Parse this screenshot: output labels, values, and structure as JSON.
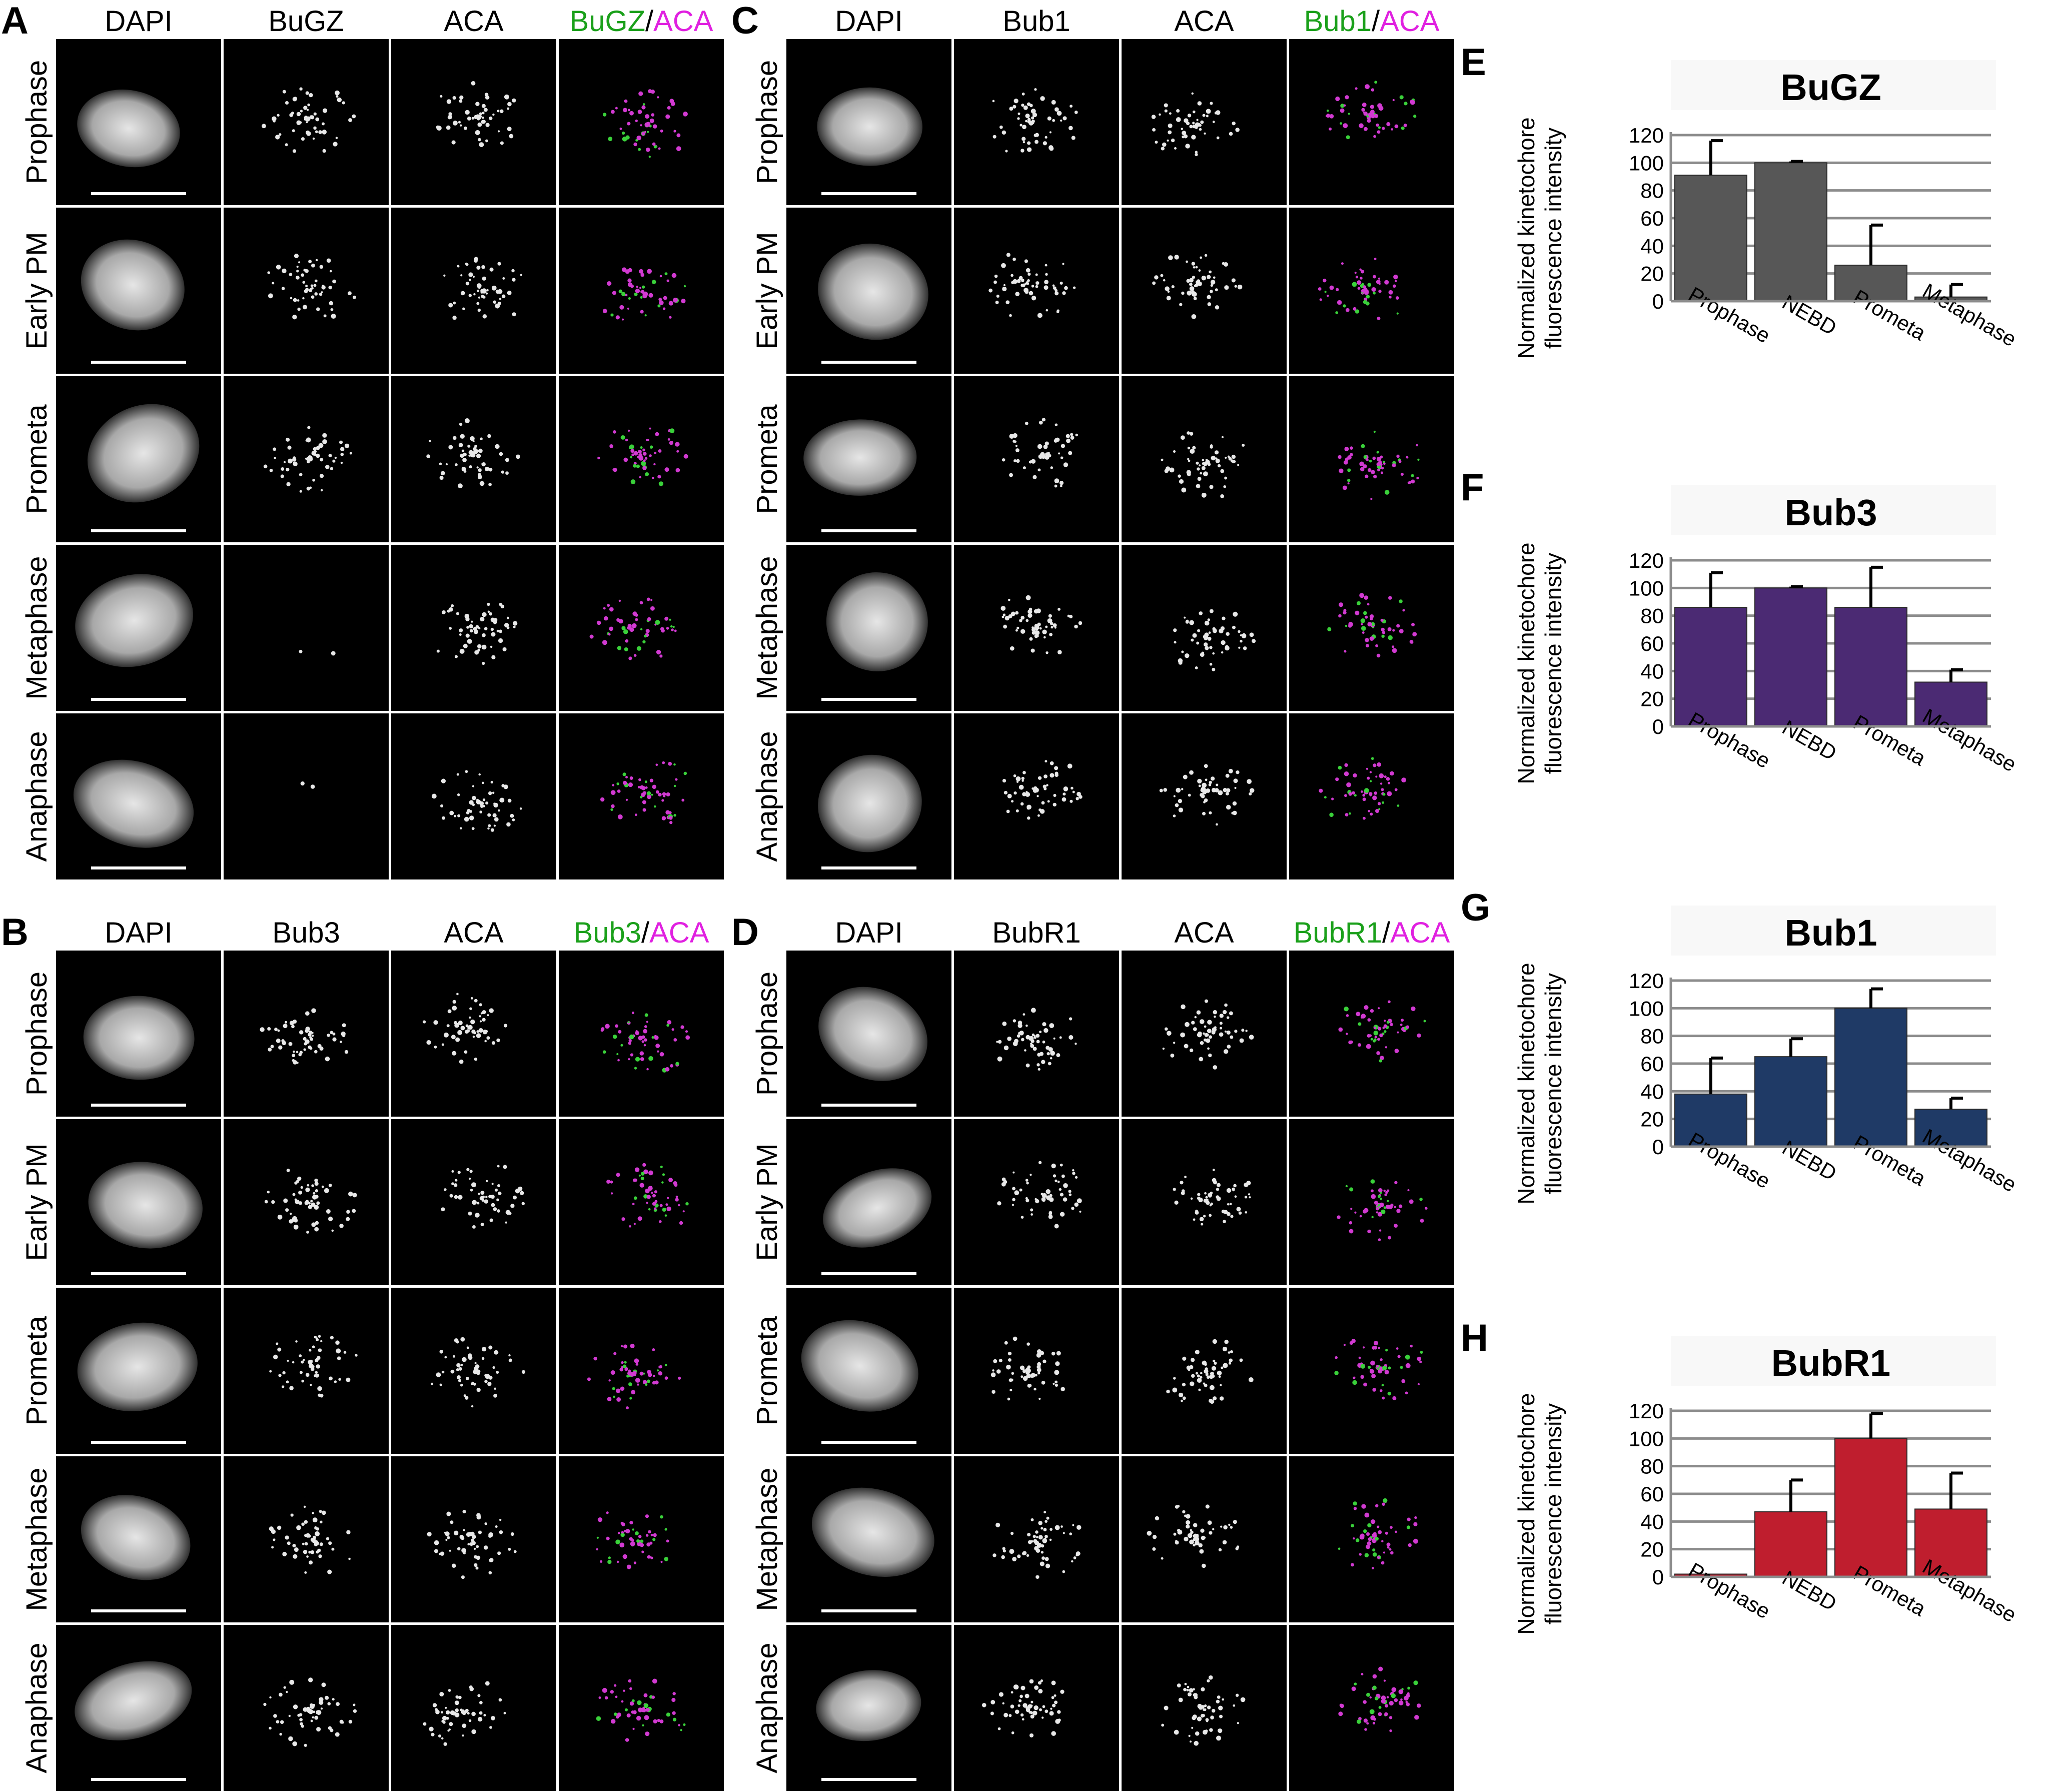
{
  "micrograph_panels": [
    {
      "letter": "A",
      "columns": {
        "c1": "DAPI",
        "c2": "BuGZ",
        "c3": "ACA",
        "merge_green": "BuGZ",
        "merge_sep": "/",
        "merge_magenta": "ACA"
      },
      "rows": [
        "Prophase",
        "Early PM",
        "Prometa",
        "Metaphase",
        "Anaphase"
      ]
    },
    {
      "letter": "B",
      "columns": {
        "c1": "DAPI",
        "c2": "Bub3",
        "c3": "ACA",
        "merge_green": "Bub3",
        "merge_sep": "/",
        "merge_magenta": "ACA"
      },
      "rows": [
        "Prophase",
        "Early PM",
        "Prometa",
        "Metaphase",
        "Anaphase"
      ]
    },
    {
      "letter": "C",
      "columns": {
        "c1": "DAPI",
        "c2": "Bub1",
        "c3": "ACA",
        "merge_green": "Bub1",
        "merge_sep": "/",
        "merge_magenta": "ACA"
      },
      "rows": [
        "Prophase",
        "Early PM",
        "Prometa",
        "Metaphase",
        "Anaphase"
      ]
    },
    {
      "letter": "D",
      "columns": {
        "c1": "DAPI",
        "c2": "BubR1",
        "c3": "ACA",
        "merge_green": "BubR1",
        "merge_sep": "/",
        "merge_magenta": "ACA"
      },
      "rows": [
        "Prophase",
        "Early PM",
        "Prometa",
        "Metaphase",
        "Anaphase"
      ]
    }
  ],
  "colors": {
    "merge_green": "#1aa01a",
    "merge_magenta": "#e020e0",
    "image_background": "#000000"
  },
  "chart_data": [
    {
      "letter": "E",
      "type": "bar",
      "title": "BuGZ",
      "ylabel_line1": "Normalized kinetochore",
      "ylabel_line2": "fluorescence intensity",
      "categories": [
        "Prophase",
        "NEBD",
        "Prometa",
        "Metaphase"
      ],
      "values": [
        91,
        100,
        26,
        3
      ],
      "errors": [
        25,
        1,
        29,
        9
      ],
      "ylim": [
        0,
        120
      ],
      "yticks": [
        0,
        20,
        40,
        60,
        80,
        100,
        120
      ],
      "bar_color": "#575757",
      "grid": true
    },
    {
      "letter": "F",
      "type": "bar",
      "title": "Bub3",
      "ylabel_line1": "Normalized kinetochore",
      "ylabel_line2": "fluorescence intensity",
      "categories": [
        "Prophase",
        "NEBD",
        "Prometa",
        "Metaphase"
      ],
      "values": [
        86,
        100,
        86,
        32
      ],
      "errors": [
        25,
        1,
        29,
        9
      ],
      "ylim": [
        0,
        120
      ],
      "yticks": [
        0,
        20,
        40,
        60,
        80,
        100,
        120
      ],
      "bar_color": "#4b2a73",
      "grid": true
    },
    {
      "letter": "G",
      "type": "bar",
      "title": "Bub1",
      "ylabel_line1": "Normalized kinetochore",
      "ylabel_line2": "fluorescence intensity",
      "categories": [
        "Prophase",
        "NEBD",
        "Prometa",
        "Metaphase"
      ],
      "values": [
        38,
        65,
        100,
        27
      ],
      "errors": [
        26,
        13,
        14,
        8
      ],
      "ylim": [
        0,
        120
      ],
      "yticks": [
        0,
        20,
        40,
        60,
        80,
        100,
        120
      ],
      "bar_color": "#1f3a66",
      "grid": true
    },
    {
      "letter": "H",
      "type": "bar",
      "title": "BubR1",
      "ylabel_line1": "Normalized kinetochore",
      "ylabel_line2": "fluorescence intensity",
      "categories": [
        "Prophase",
        "NEBD",
        "Prometa",
        "Metaphase"
      ],
      "values": [
        2,
        47,
        100,
        49
      ],
      "errors": [
        0,
        23,
        18,
        26
      ],
      "ylim": [
        0,
        120
      ],
      "yticks": [
        0,
        20,
        40,
        60,
        80,
        100,
        120
      ],
      "bar_color": "#bf1e2e",
      "grid": true
    }
  ]
}
